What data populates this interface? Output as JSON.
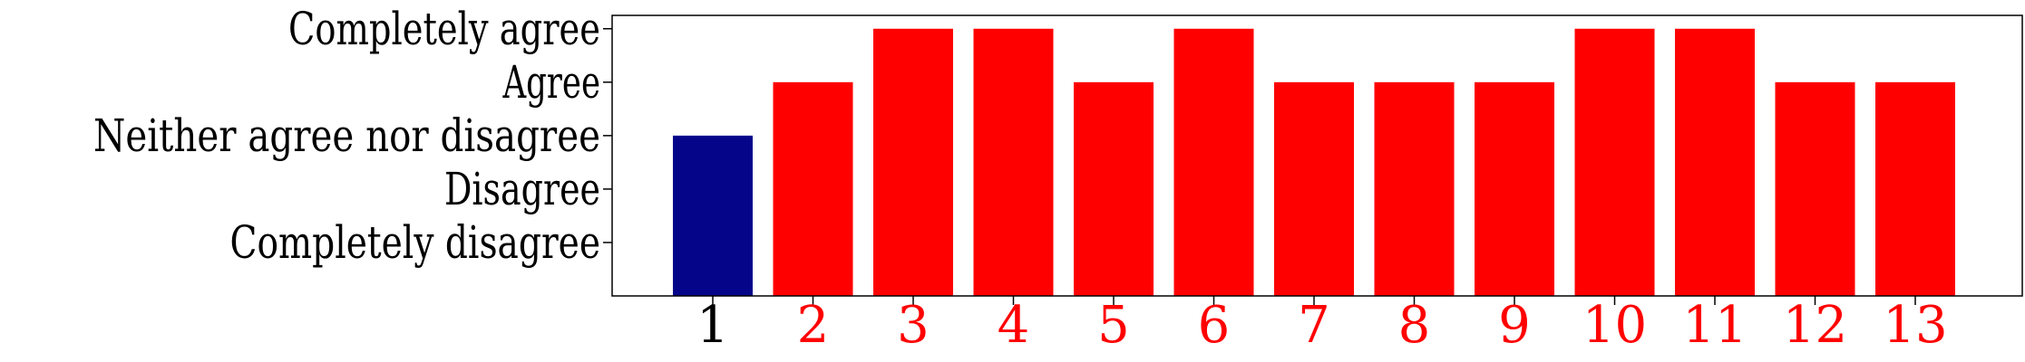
{
  "chart_data": {
    "type": "bar",
    "categories": [
      "1",
      "2",
      "3",
      "4",
      "5",
      "6",
      "7",
      "8",
      "9",
      "10",
      "11",
      "12",
      "13"
    ],
    "values": [
      3,
      4,
      5,
      5,
      4,
      5,
      4,
      4,
      4,
      5,
      5,
      4,
      4
    ],
    "bar_colors": [
      "#05058a",
      "#ff0000",
      "#ff0000",
      "#ff0000",
      "#ff0000",
      "#ff0000",
      "#ff0000",
      "#ff0000",
      "#ff0000",
      "#ff0000",
      "#ff0000",
      "#ff0000",
      "#ff0000"
    ],
    "xtick_colors": [
      "#000000",
      "#ff0000",
      "#ff0000",
      "#ff0000",
      "#ff0000",
      "#ff0000",
      "#ff0000",
      "#ff0000",
      "#ff0000",
      "#ff0000",
      "#ff0000",
      "#ff0000",
      "#ff0000"
    ],
    "yticks": [
      {
        "value": 1,
        "label": "Completely disagree"
      },
      {
        "value": 2,
        "label": "Disagree"
      },
      {
        "value": 3,
        "label": "Neither agree nor disagree"
      },
      {
        "value": 4,
        "label": "Agree"
      },
      {
        "value": 5,
        "label": "Completely agree"
      }
    ],
    "ylim": [
      0,
      5.25
    ],
    "title": "",
    "xlabel": "",
    "ylabel": "",
    "grid": false,
    "legend": "none"
  }
}
